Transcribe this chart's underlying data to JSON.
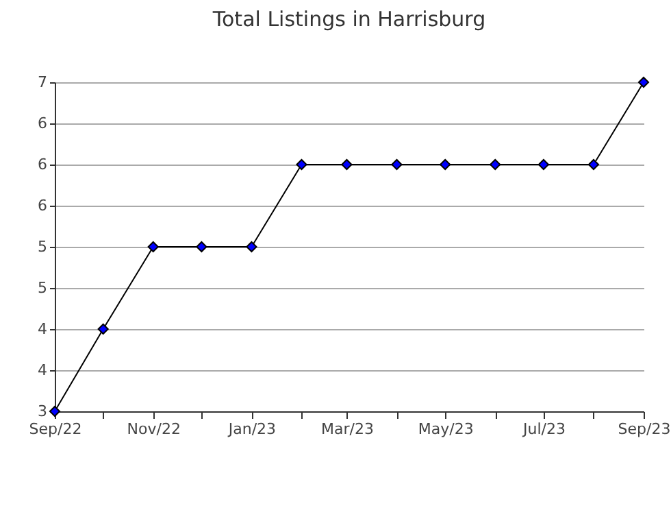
{
  "chart_data": {
    "type": "line",
    "title": "Total Listings in Harrisburg",
    "x": [
      "2022-09",
      "2022-10",
      "2022-11",
      "2022-12",
      "2023-01",
      "2023-02",
      "2023-03",
      "2023-04",
      "2023-05",
      "2023-06",
      "2023-07",
      "2023-08",
      "2023-09"
    ],
    "series": [
      {
        "color": "#0000ff",
        "values": [
          3,
          4,
          5,
          5,
          5,
          6,
          6,
          6,
          6,
          6,
          6,
          6,
          7
        ]
      }
    ],
    "xlim": [
      "2022-09",
      "2023-09"
    ],
    "xticks": [
      {
        "value": "2022-09",
        "label": "Sep/22"
      },
      {
        "value": "2022-10",
        "label": null
      },
      {
        "value": "2022-11",
        "label": "Nov/22"
      },
      {
        "value": "2022-12",
        "label": null
      },
      {
        "value": "2023-01",
        "label": "Jan/23"
      },
      {
        "value": "2023-02",
        "label": null
      },
      {
        "value": "2023-03",
        "label": "Mar/23"
      },
      {
        "value": "2023-04",
        "label": null
      },
      {
        "value": "2023-05",
        "label": "May/23"
      },
      {
        "value": "2023-06",
        "label": null
      },
      {
        "value": "2023-07",
        "label": "Jul/23"
      },
      {
        "value": "2023-08",
        "label": null
      },
      {
        "value": "2023-09",
        "label": "Sep/23"
      }
    ],
    "ylim": [
      3,
      7
    ],
    "yticks": [
      {
        "value": 3,
        "label": "3"
      },
      {
        "value": 3.5,
        "label": "4"
      },
      {
        "value": 4,
        "label": "4"
      },
      {
        "value": 4.5,
        "label": "5"
      },
      {
        "value": 5,
        "label": "5"
      },
      {
        "value": 5.5,
        "label": "6"
      },
      {
        "value": 6,
        "label": "6"
      },
      {
        "value": 6.5,
        "label": "6"
      },
      {
        "value": 7,
        "label": "7"
      }
    ],
    "grid": "y",
    "marker": "diamond",
    "line_style": "solid"
  }
}
